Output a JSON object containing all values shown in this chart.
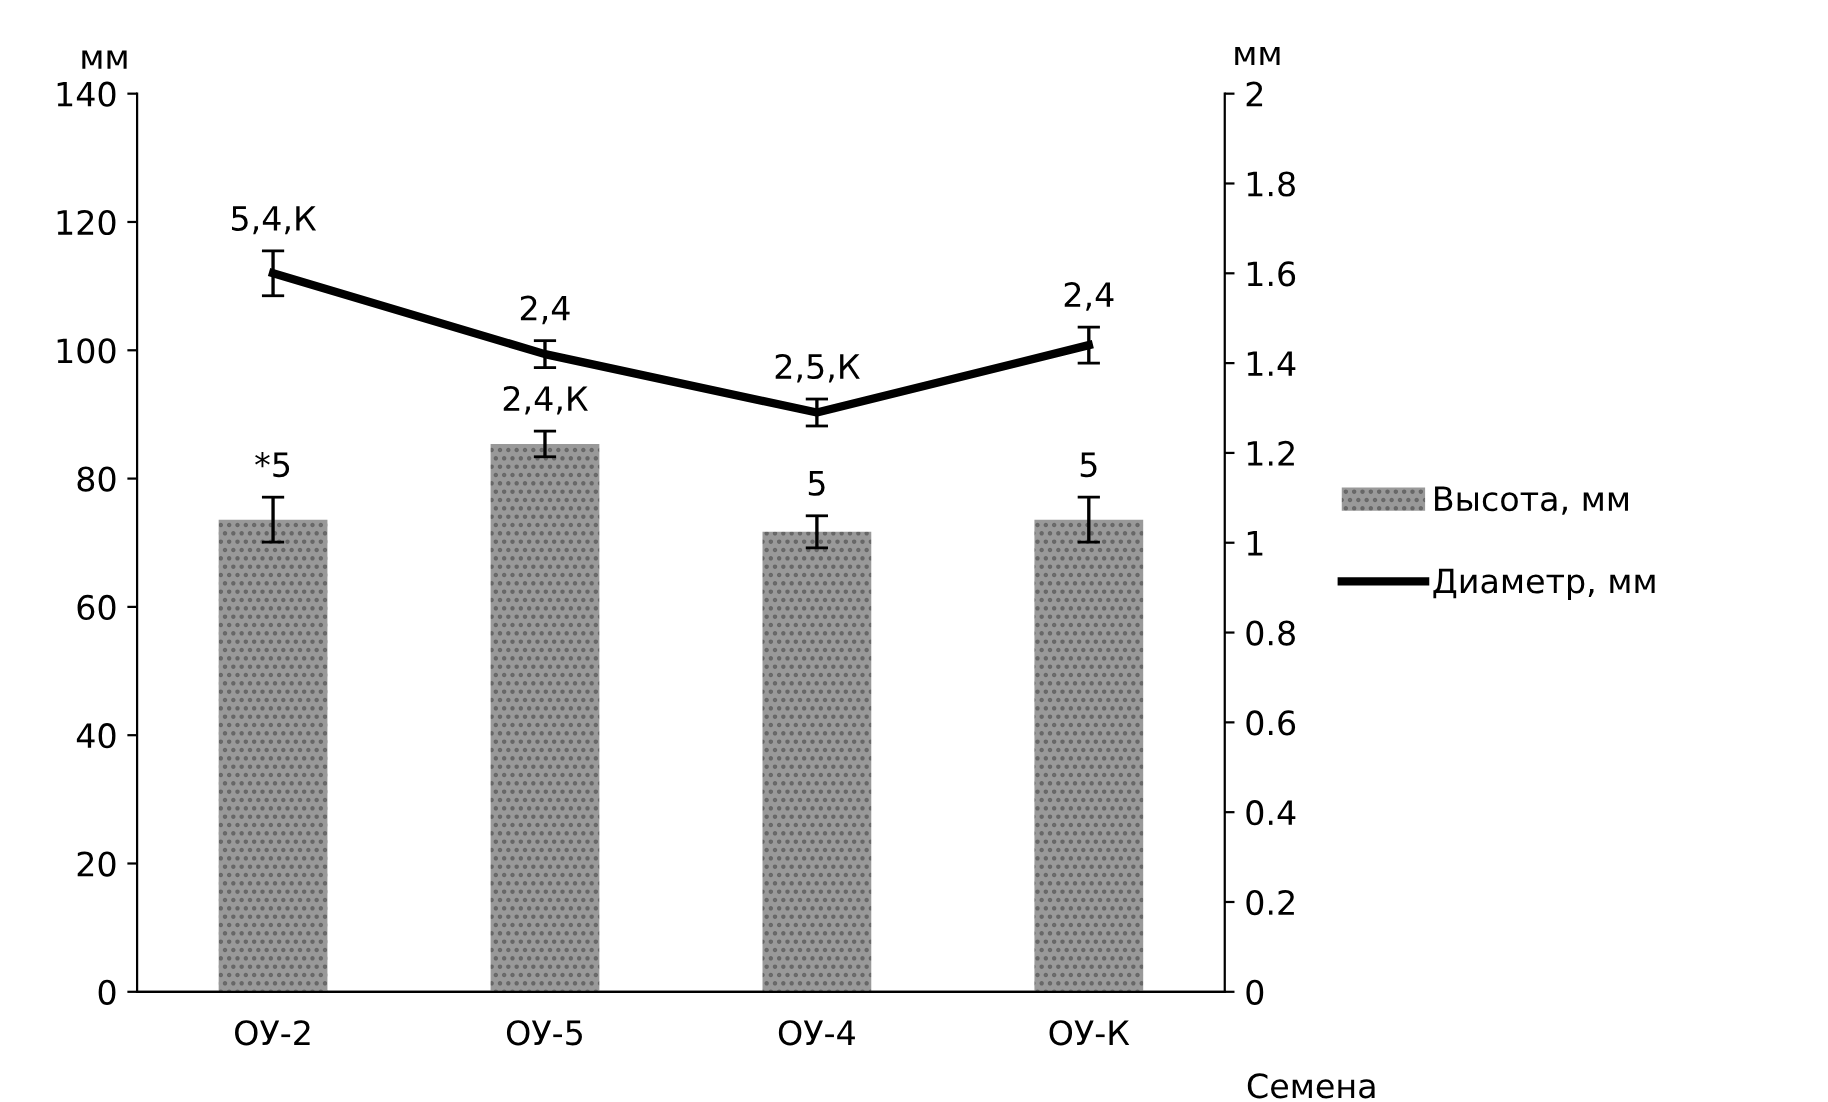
{
  "chart_data": {
    "type": "bar",
    "categories": [
      "ОУ-2",
      "ОУ-5",
      "ОУ-4",
      "ОУ-К"
    ],
    "xlabel": "Семена",
    "ylabel": "мм",
    "y2label": "мм",
    "ylim": [
      0,
      140
    ],
    "yticks": [
      0,
      20,
      40,
      60,
      80,
      100,
      120,
      140
    ],
    "y2lim": [
      0,
      2
    ],
    "y2ticks": [
      {
        "value": 0,
        "label": "0"
      },
      {
        "value": 0.2,
        "label": "0.2"
      },
      {
        "value": 0.4,
        "label": "0.4"
      },
      {
        "value": 0.6,
        "label": "0.6"
      },
      {
        "value": 0.8,
        "label": "0.8"
      },
      {
        "value": 1,
        "label": "1"
      },
      {
        "value": 1.2,
        "label": "1.2"
      },
      {
        "value": 1.4,
        "label": "1.4"
      },
      {
        "value": 1.6,
        "label": "1.6"
      },
      {
        "value": 1.8,
        "label": "1.8"
      },
      {
        "value": 2,
        "label": "2"
      }
    ],
    "grid": false,
    "legend": "right",
    "series": [
      {
        "name": "Высота, мм",
        "color": "#999999",
        "values": [
          73.6,
          85.4,
          71.7,
          73.6
        ],
        "errors": [
          3.5,
          2,
          2.5,
          3.5
        ]
      },
      {
        "name": "Диаметр, мм",
        "type": "line",
        "axis": "y2",
        "color": "#000000",
        "values": [
          1.6,
          1.42,
          1.29,
          1.44
        ],
        "errors": [
          0.05,
          0.03,
          0.03,
          0.04
        ],
        "marker": "none",
        "line_style": "solid"
      }
    ],
    "annotations": [
      "*5",
      "2,4,К",
      "5",
      "5",
      "5,4,К",
      "2,4",
      "2,5,К",
      "2,4"
    ]
  }
}
